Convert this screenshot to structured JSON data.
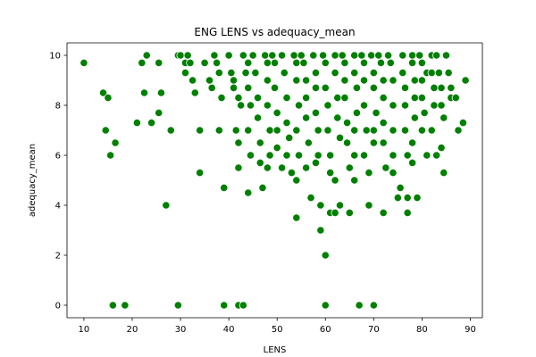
{
  "chart_data": {
    "type": "scatter",
    "title": "ENG LENS vs adequacy_mean",
    "xlabel": "LENS",
    "ylabel": "adequacy_mean",
    "xlim": [
      6.5,
      92.5
    ],
    "ylim": [
      -0.5,
      10.5
    ],
    "xticks": [
      10,
      20,
      30,
      40,
      50,
      60,
      70,
      80,
      90
    ],
    "yticks": [
      0,
      2,
      4,
      6,
      8,
      10
    ],
    "grid": false,
    "marker_color": "#008000",
    "marker_edge": "#ffffff",
    "points": [
      [
        10,
        9.7
      ],
      [
        14,
        8.5
      ],
      [
        15,
        8.3
      ],
      [
        14.5,
        7
      ],
      [
        15.5,
        6
      ],
      [
        16.5,
        6.5
      ],
      [
        16,
        0
      ],
      [
        18.5,
        0
      ],
      [
        21,
        7.3
      ],
      [
        22,
        9.7
      ],
      [
        22.5,
        8.5
      ],
      [
        23,
        10
      ],
      [
        24,
        7.3
      ],
      [
        25.5,
        9.7
      ],
      [
        25.5,
        7.7
      ],
      [
        26,
        8.5
      ],
      [
        27,
        4
      ],
      [
        28,
        7
      ],
      [
        29.5,
        0
      ],
      [
        29.5,
        10
      ],
      [
        30,
        10
      ],
      [
        31,
        9.7
      ],
      [
        31,
        9.3
      ],
      [
        31.5,
        10
      ],
      [
        32,
        9.7
      ],
      [
        32.5,
        9
      ],
      [
        33,
        8.5
      ],
      [
        34,
        7
      ],
      [
        34,
        5.3
      ],
      [
        35,
        9.7
      ],
      [
        36,
        9
      ],
      [
        36.5,
        8.7
      ],
      [
        37,
        10
      ],
      [
        37.5,
        9.7
      ],
      [
        38,
        9.3
      ],
      [
        38.5,
        8.3
      ],
      [
        38,
        7
      ],
      [
        39,
        4.7
      ],
      [
        39,
        0
      ],
      [
        40,
        10
      ],
      [
        40.5,
        9.3
      ],
      [
        41,
        9
      ],
      [
        41,
        8.7
      ],
      [
        42,
        8.3
      ],
      [
        42.5,
        8
      ],
      [
        41.5,
        7
      ],
      [
        42,
        6.5
      ],
      [
        42,
        5.5
      ],
      [
        42,
        0
      ],
      [
        43,
        10
      ],
      [
        43.5,
        9.3
      ],
      [
        44,
        9.7
      ],
      [
        44,
        8.7
      ],
      [
        44.5,
        8
      ],
      [
        44,
        7
      ],
      [
        44.5,
        6
      ],
      [
        44,
        4.5
      ],
      [
        43,
        0
      ],
      [
        45,
        10
      ],
      [
        45.5,
        9.3
      ],
      [
        46,
        8.3
      ],
      [
        46,
        7.5
      ],
      [
        46.5,
        6.5
      ],
      [
        46.5,
        5.7
      ],
      [
        47,
        4.7
      ],
      [
        47.5,
        10
      ],
      [
        48,
        9.7
      ],
      [
        48,
        9
      ],
      [
        48,
        8
      ],
      [
        48.5,
        7
      ],
      [
        48.5,
        6
      ],
      [
        48,
        5.5
      ],
      [
        49,
        10
      ],
      [
        49.5,
        9.7
      ],
      [
        49.5,
        8.7
      ],
      [
        50,
        7.7
      ],
      [
        50,
        7
      ],
      [
        50,
        6.3
      ],
      [
        51,
        5.5
      ],
      [
        51,
        10
      ],
      [
        51.5,
        9.3
      ],
      [
        52,
        8.3
      ],
      [
        52,
        7.3
      ],
      [
        52.5,
        6.7
      ],
      [
        52,
        6
      ],
      [
        53,
        5.3
      ],
      [
        53.5,
        10
      ],
      [
        54,
        9.7
      ],
      [
        54,
        9
      ],
      [
        54.5,
        8
      ],
      [
        54,
        7
      ],
      [
        54.5,
        6
      ],
      [
        54,
        5
      ],
      [
        54,
        3.5
      ],
      [
        55,
        10
      ],
      [
        55.5,
        9.7
      ],
      [
        56,
        9
      ],
      [
        56,
        8.3
      ],
      [
        56,
        7.5
      ],
      [
        56.5,
        6.5
      ],
      [
        56,
        5.5
      ],
      [
        57,
        4.3
      ],
      [
        57.5,
        10
      ],
      [
        58,
        9.3
      ],
      [
        58,
        8.7
      ],
      [
        58,
        7.7
      ],
      [
        58.5,
        7
      ],
      [
        58.5,
        6
      ],
      [
        58,
        5.7
      ],
      [
        59,
        4
      ],
      [
        59,
        3
      ],
      [
        60,
        2
      ],
      [
        60,
        0
      ],
      [
        59.5,
        10
      ],
      [
        60,
        9.7
      ],
      [
        60,
        8.7
      ],
      [
        60.5,
        8
      ],
      [
        60.5,
        7
      ],
      [
        61,
        6
      ],
      [
        61,
        5.3
      ],
      [
        61,
        3.7
      ],
      [
        62,
        10
      ],
      [
        62,
        9.3
      ],
      [
        62.5,
        8.3
      ],
      [
        62.5,
        7.5
      ],
      [
        63,
        6.7
      ],
      [
        62,
        5
      ],
      [
        62,
        3.7
      ],
      [
        63,
        4
      ],
      [
        63.5,
        10
      ],
      [
        64,
        9.7
      ],
      [
        64,
        9
      ],
      [
        64,
        8.3
      ],
      [
        64.5,
        7.3
      ],
      [
        64.5,
        6.5
      ],
      [
        65,
        5.5
      ],
      [
        65,
        3.7
      ],
      [
        66,
        10
      ],
      [
        66,
        9.3
      ],
      [
        66.5,
        8.7
      ],
      [
        66.5,
        7.7
      ],
      [
        66,
        7
      ],
      [
        66,
        6
      ],
      [
        66,
        5
      ],
      [
        67,
        0
      ],
      [
        67.5,
        10
      ],
      [
        68,
        9.7
      ],
      [
        68,
        9
      ],
      [
        68,
        8
      ],
      [
        68.5,
        7
      ],
      [
        68,
        6
      ],
      [
        69,
        5.3
      ],
      [
        69,
        4
      ],
      [
        69.5,
        10
      ],
      [
        70,
        9.3
      ],
      [
        70,
        8.7
      ],
      [
        70.5,
        7.7
      ],
      [
        70,
        7
      ],
      [
        70,
        6.5
      ],
      [
        70,
        0
      ],
      [
        71,
        10
      ],
      [
        71.5,
        9.7
      ],
      [
        72,
        9
      ],
      [
        72,
        8.3
      ],
      [
        72,
        7.3
      ],
      [
        72,
        6.5
      ],
      [
        72.5,
        5.5
      ],
      [
        72,
        3.7
      ],
      [
        73,
        10
      ],
      [
        73.5,
        9.7
      ],
      [
        74,
        9
      ],
      [
        74,
        8
      ],
      [
        74,
        7
      ],
      [
        74,
        6
      ],
      [
        74,
        5.3
      ],
      [
        75,
        4.3
      ],
      [
        75.5,
        4.7
      ],
      [
        76,
        10
      ],
      [
        76,
        9.3
      ],
      [
        76.5,
        8.7
      ],
      [
        76.5,
        8
      ],
      [
        76.5,
        7
      ],
      [
        77,
        6
      ],
      [
        77,
        4.3
      ],
      [
        77,
        3.7
      ],
      [
        78,
        10
      ],
      [
        78,
        9.7
      ],
      [
        78.5,
        9
      ],
      [
        78.5,
        8.3
      ],
      [
        78.5,
        7.5
      ],
      [
        78,
        6.5
      ],
      [
        78,
        5.7
      ],
      [
        79,
        4.3
      ],
      [
        79.5,
        10
      ],
      [
        80,
        9.7
      ],
      [
        80,
        9
      ],
      [
        80,
        8.3
      ],
      [
        80.5,
        7.7
      ],
      [
        80,
        7
      ],
      [
        81,
        6
      ],
      [
        81,
        9.3
      ],
      [
        82,
        10
      ],
      [
        82,
        9.3
      ],
      [
        82.5,
        8.7
      ],
      [
        82.5,
        8
      ],
      [
        82,
        7
      ],
      [
        83,
        6
      ],
      [
        84,
        6.3
      ],
      [
        83,
        10
      ],
      [
        83.5,
        9.3
      ],
      [
        84,
        8.7
      ],
      [
        84,
        8
      ],
      [
        84.5,
        7.5
      ],
      [
        84.5,
        5.3
      ],
      [
        85,
        10
      ],
      [
        85.5,
        9.3
      ],
      [
        86,
        8.7
      ],
      [
        86,
        8.3
      ],
      [
        87,
        8.3
      ],
      [
        87.5,
        7
      ],
      [
        88.5,
        7.3
      ],
      [
        89,
        9
      ],
      [
        89,
        9
      ]
    ]
  }
}
